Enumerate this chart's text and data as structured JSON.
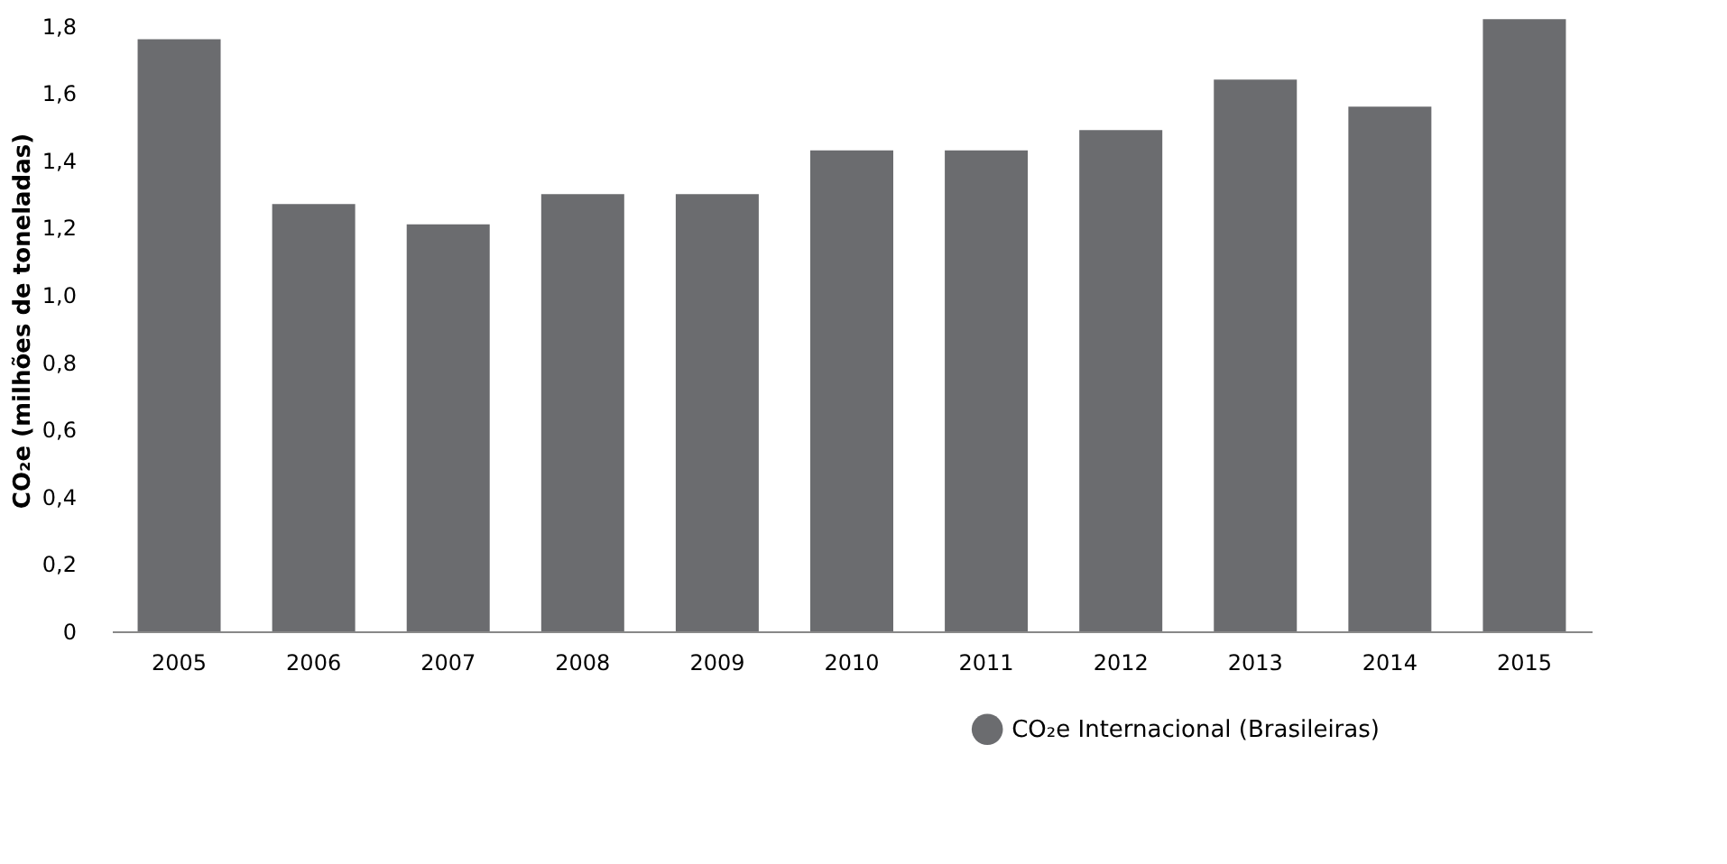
{
  "chart_data": {
    "type": "bar",
    "ylabel": "CO₂e (milhões de toneladas)",
    "categories": [
      "2005",
      "2006",
      "2007",
      "2008",
      "2009",
      "2010",
      "2011",
      "2012",
      "2013",
      "2014",
      "2015"
    ],
    "series": [
      {
        "name": "CO₂e Internacional (Brasileiras)",
        "color": "#6b6c6f",
        "values": [
          1.76,
          1.27,
          1.21,
          1.3,
          1.3,
          1.43,
          1.43,
          1.49,
          1.64,
          1.56,
          1.82
        ]
      }
    ],
    "ylim": [
      0,
      1.85
    ],
    "yticks": [
      0,
      {
        "value": 0.2,
        "label": "0,2"
      },
      {
        "value": 0.4,
        "label": "0,4"
      },
      {
        "value": 0.6,
        "label": "0,6"
      },
      {
        "value": 0.8,
        "label": "0,8"
      },
      {
        "value": 1.0,
        "label": "1,0"
      },
      {
        "value": 1.2,
        "label": "1,2"
      },
      {
        "value": 1.4,
        "label": "1,4"
      },
      {
        "value": 1.6,
        "label": "1,6"
      },
      {
        "value": 1.8,
        "label": "1,8"
      }
    ],
    "grid": false,
    "legend": "bottom right"
  }
}
